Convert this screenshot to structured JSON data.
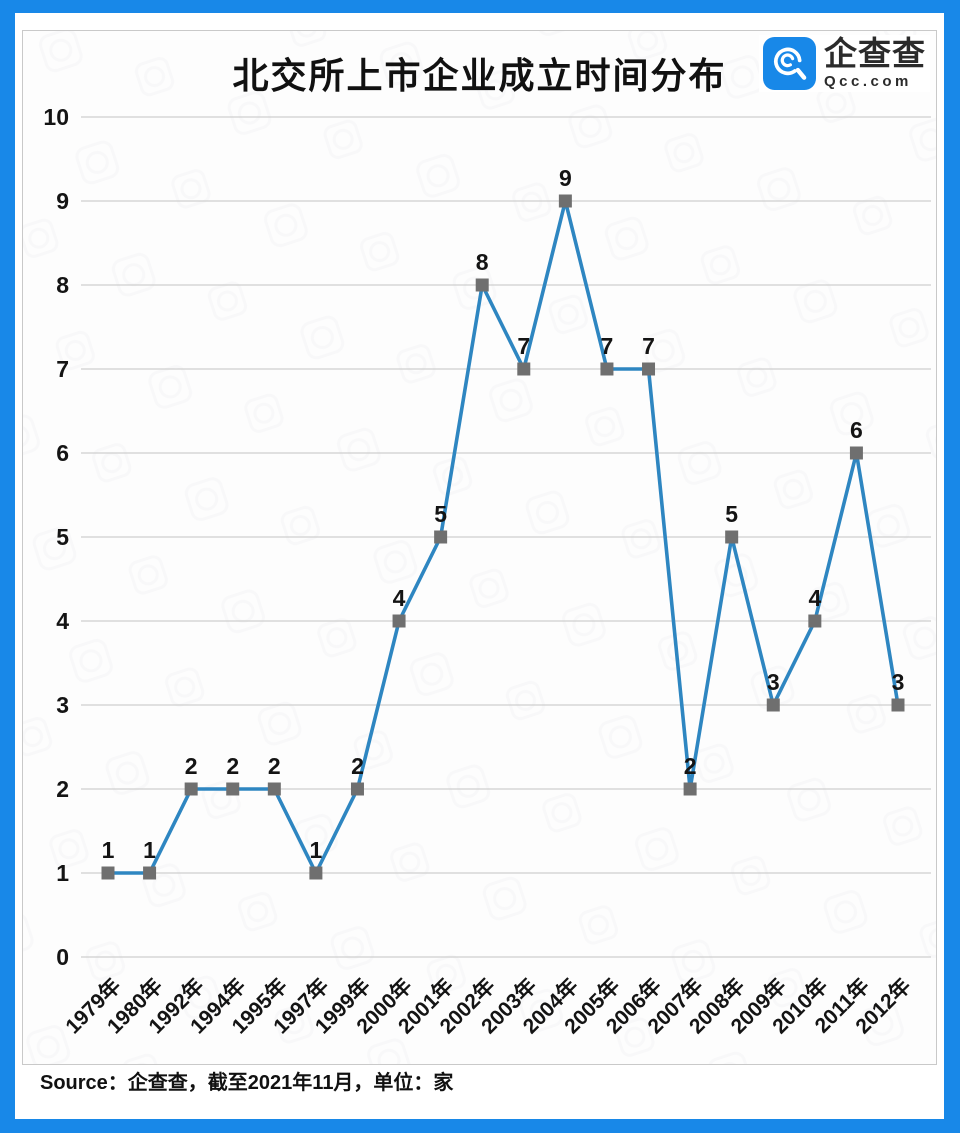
{
  "header": {
    "title": "北交所上市企业成立时间分布"
  },
  "logo": {
    "name": "企查查",
    "domain": "Qcc.com"
  },
  "footer": {
    "source": "Source：企查查，截至2021年11月，单位：家"
  },
  "colors": {
    "frame_blue": "#1888e8",
    "logo_blue": "#1888e8",
    "line_blue": "#2e86c1",
    "marker_gray": "#6f6f6f",
    "grid_gray": "#cfcfcf",
    "chart_bg": "#fdfdfd"
  },
  "chart_data": {
    "type": "line",
    "title": "北交所上市企业成立时间分布",
    "categories": [
      "1979年",
      "1980年",
      "1992年",
      "1994年",
      "1995年",
      "1997年",
      "1999年",
      "2000年",
      "2001年",
      "2002年",
      "2003年",
      "2004年",
      "2005年",
      "2006年",
      "2007年",
      "2008年",
      "2009年",
      "2010年",
      "2011年",
      "2012年"
    ],
    "values": [
      1,
      1,
      2,
      2,
      2,
      1,
      2,
      4,
      5,
      8,
      7,
      9,
      7,
      7,
      2,
      5,
      3,
      4,
      6,
      3
    ],
    "xlabel": "",
    "ylabel": "",
    "unit": "家",
    "ylim": [
      0,
      10
    ],
    "yticks": [
      0,
      1,
      2,
      3,
      4,
      5,
      6,
      7,
      8,
      9,
      10
    ],
    "grid": true,
    "legend": "none",
    "marker": "square",
    "data_labels": true
  }
}
